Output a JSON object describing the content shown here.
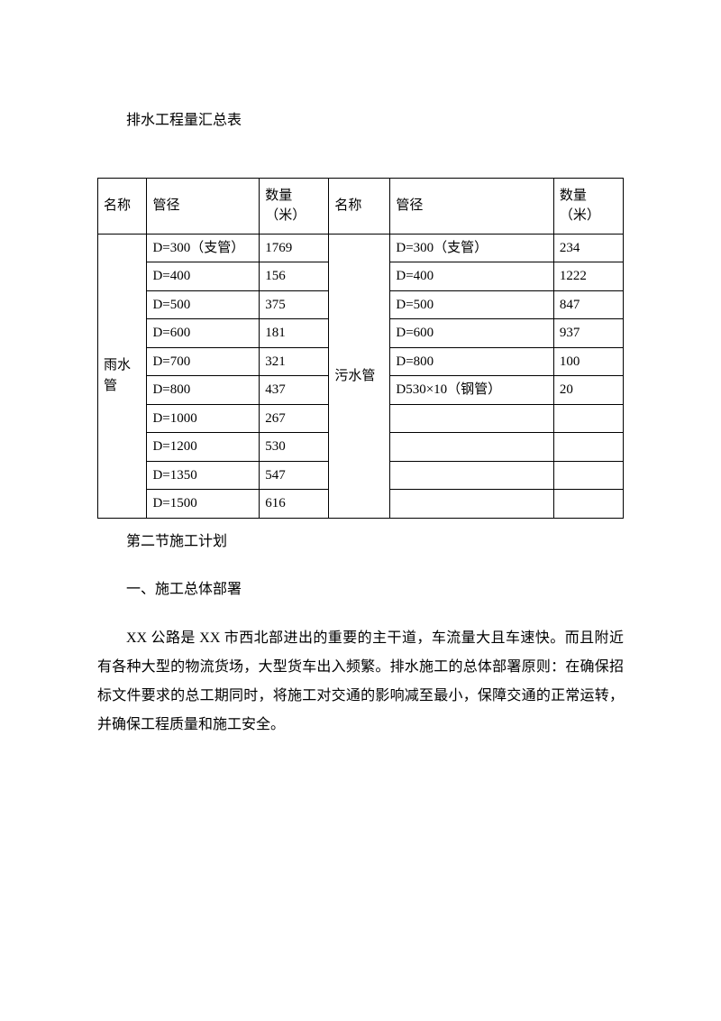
{
  "title": "排水工程量汇总表",
  "table": {
    "headers": {
      "name1": "名称",
      "diameter1": "管径",
      "quantity1": "数量（米）",
      "name2": "名称",
      "diameter2": "管径",
      "quantity2": "数量（米）"
    },
    "left_group": "雨水管",
    "right_group": "污水管",
    "rows": [
      {
        "d1": "D=300（支管）",
        "q1": "1769",
        "d2": "D=300（支管）",
        "q2": "234"
      },
      {
        "d1": "D=400",
        "q1": "156",
        "d2": "D=400",
        "q2": "1222"
      },
      {
        "d1": "D=500",
        "q1": "375",
        "d2": "D=500",
        "q2": "847"
      },
      {
        "d1": "D=600",
        "q1": "181",
        "d2": "D=600",
        "q2": "937"
      },
      {
        "d1": "D=700",
        "q1": "321",
        "d2": "D=800",
        "q2": "100"
      },
      {
        "d1": "D=800",
        "q1": "437",
        "d2": "D530×10（钢管）",
        "q2": "20"
      },
      {
        "d1": "D=1000",
        "q1": "267",
        "d2": "",
        "q2": ""
      },
      {
        "d1": "D=1200",
        "q1": "530",
        "d2": "",
        "q2": ""
      },
      {
        "d1": "D=1350",
        "q1": "547",
        "d2": "",
        "q2": ""
      },
      {
        "d1": "D=1500",
        "q1": "616",
        "d2": "",
        "q2": ""
      }
    ]
  },
  "section2_title": "第二节施工计划",
  "sub_heading": "一、施工总体部署",
  "paragraph": "XX 公路是 XX 市西北部进出的重要的主干道，车流量大且车速快。而且附近有各种大型的物流货场，大型货车出入频繁。排水施工的总体部署原则：在确保招标文件要求的总工期同时，将施工对交通的影响减至最小，保障交通的正常运转，并确保工程质量和施工安全。"
}
